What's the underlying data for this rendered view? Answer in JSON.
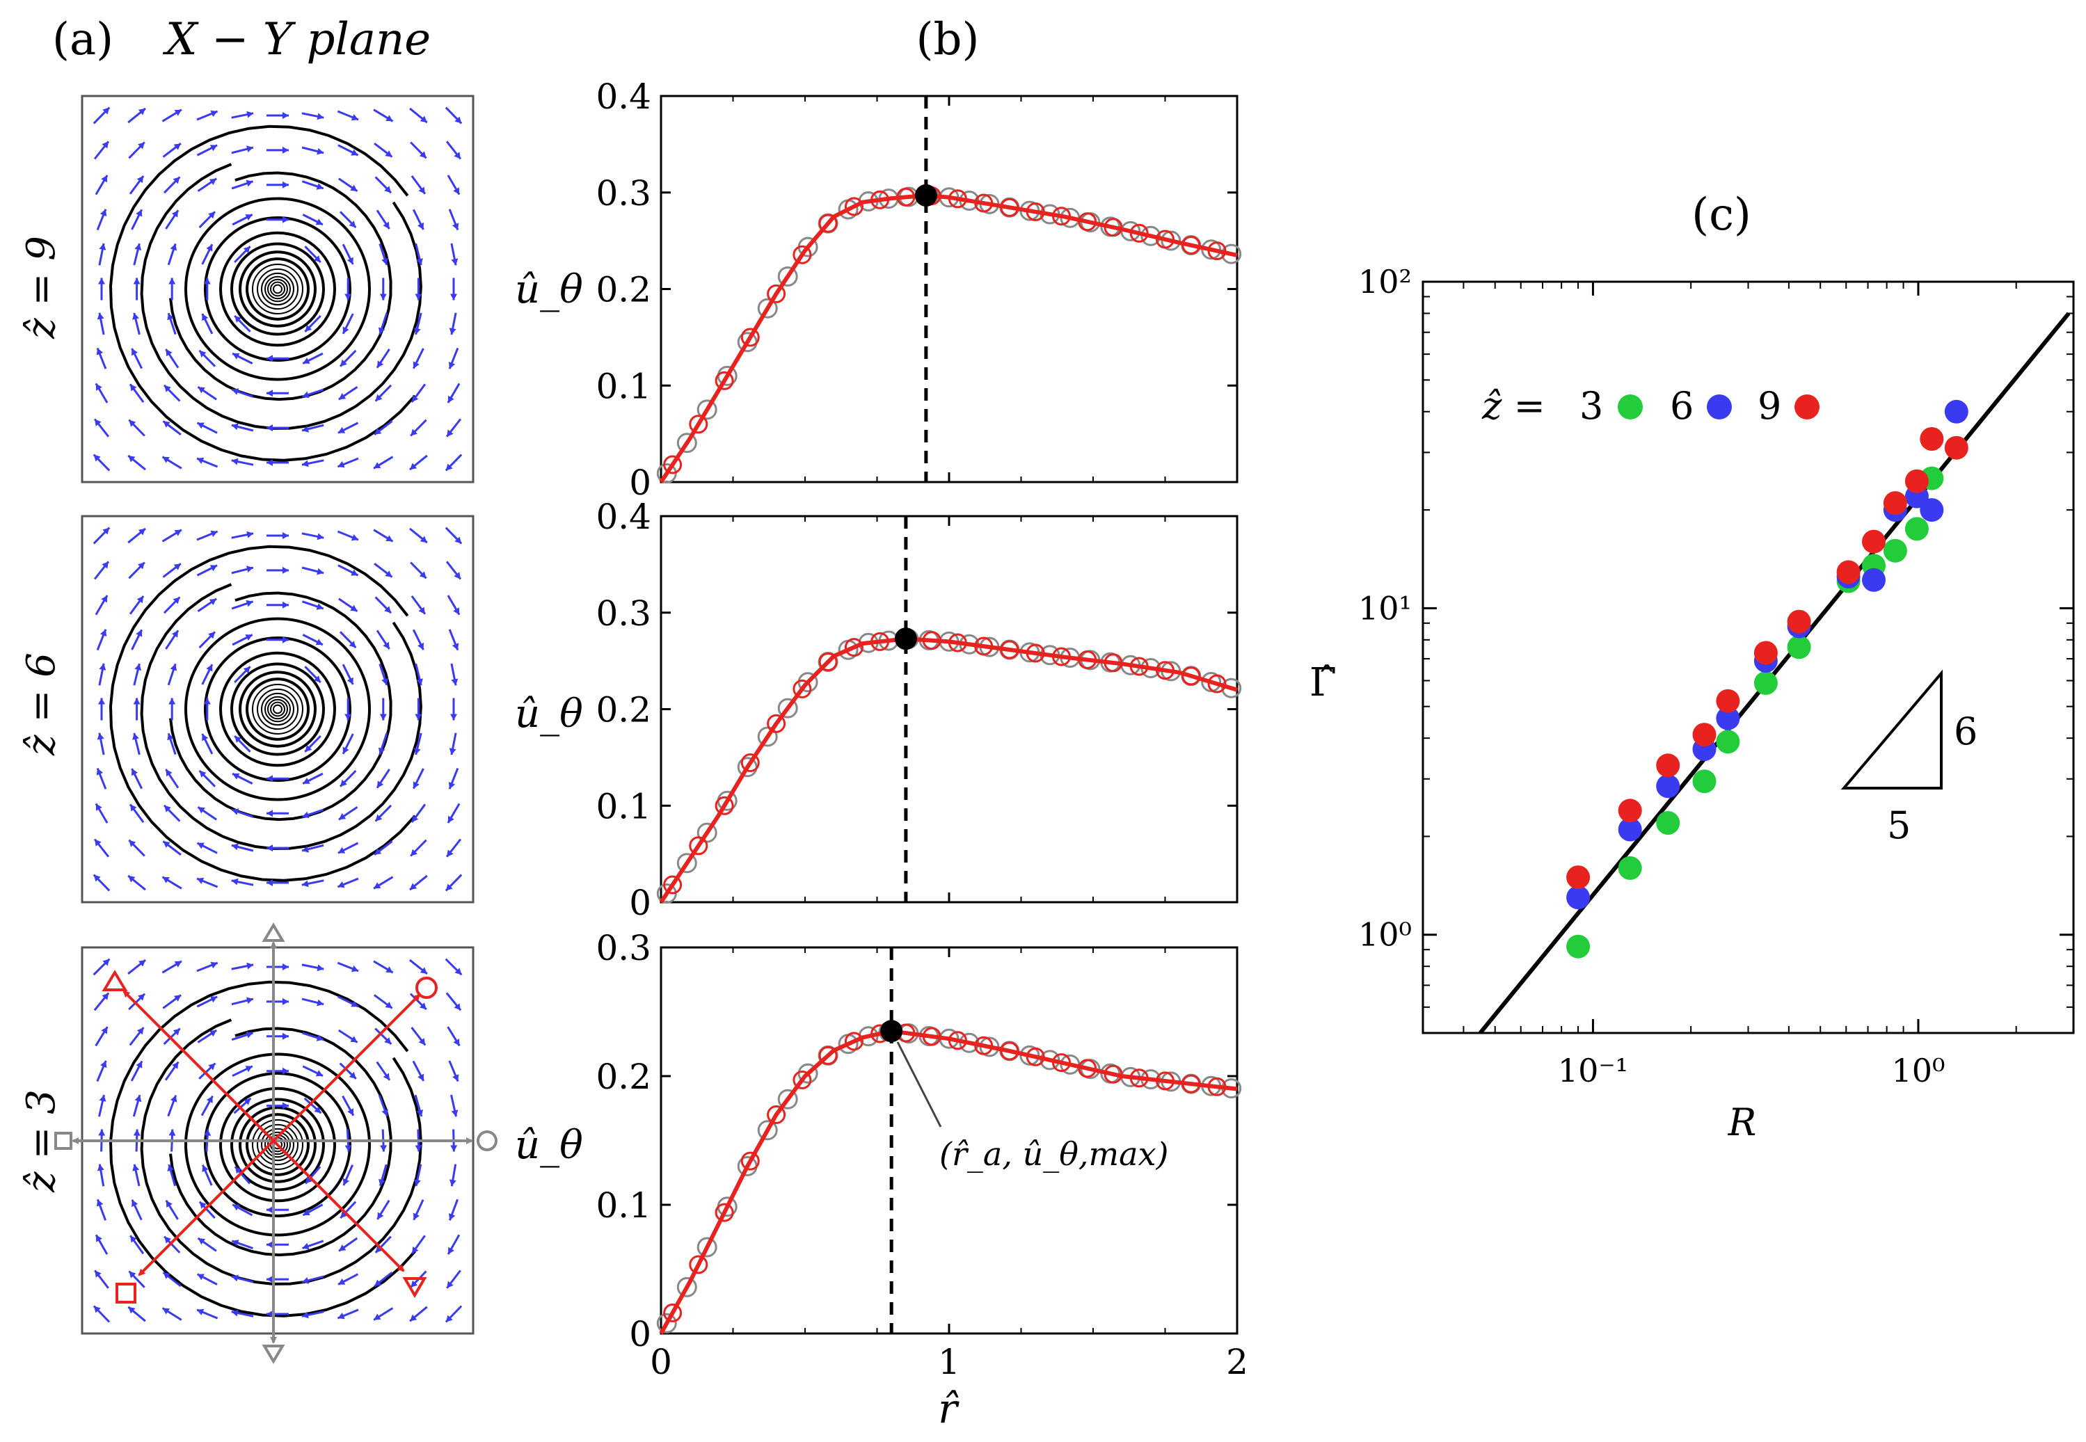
{
  "panel_a": {
    "letter": "(a)",
    "heading": "X − Y plane",
    "rows": [
      {
        "label": "ẑ = 9"
      },
      {
        "label": "ẑ = 6"
      },
      {
        "label": "ẑ = 3"
      }
    ]
  },
  "panel_b": {
    "letter": "(b)",
    "xlabel": "r̂",
    "ylabel": "û_θ",
    "annotation": "(r̂_a, û_θ,max)"
  },
  "panel_c": {
    "letter": "(c)",
    "xlabel": "R",
    "ylabel": "Γ̂",
    "legend_prefix": "ẑ =",
    "slope_rise": "6",
    "slope_run": "5"
  },
  "colors": {
    "arrow": "#3a3af0",
    "red": "#e8231f",
    "blue": "#3a3af0",
    "green": "#22cc3a",
    "gray": "#888888"
  },
  "chart_data": [
    {
      "type": "line",
      "panel": "b-top",
      "x_ticks": [
        "0",
        "1",
        "2"
      ],
      "y_ticks": [
        "0",
        "0.1",
        "0.2",
        "0.3",
        "0.4"
      ],
      "xlim": [
        0,
        2
      ],
      "ylim": [
        0,
        0.4
      ],
      "peak": {
        "x": 0.92,
        "y": 0.297
      },
      "curve": {
        "x": [
          0,
          0.1,
          0.2,
          0.3,
          0.4,
          0.5,
          0.6,
          0.7,
          0.8,
          0.92,
          1.0,
          1.2,
          1.4,
          1.6,
          1.8,
          2.0
        ],
        "y": [
          0,
          0.045,
          0.095,
          0.145,
          0.195,
          0.24,
          0.275,
          0.29,
          0.294,
          0.297,
          0.295,
          0.285,
          0.275,
          0.262,
          0.248,
          0.235
        ]
      }
    },
    {
      "type": "line",
      "panel": "b-middle",
      "x_ticks": [
        "0",
        "1",
        "2"
      ],
      "y_ticks": [
        "0",
        "0.1",
        "0.2",
        "0.3",
        "0.4"
      ],
      "xlim": [
        0,
        2
      ],
      "ylim": [
        0,
        0.4
      ],
      "peak": {
        "x": 0.85,
        "y": 0.273
      },
      "curve": {
        "x": [
          0,
          0.1,
          0.2,
          0.3,
          0.4,
          0.5,
          0.6,
          0.7,
          0.85,
          1.0,
          1.2,
          1.4,
          1.6,
          1.8,
          2.0
        ],
        "y": [
          0,
          0.045,
          0.09,
          0.14,
          0.185,
          0.225,
          0.255,
          0.268,
          0.273,
          0.27,
          0.262,
          0.254,
          0.247,
          0.238,
          0.22
        ]
      }
    },
    {
      "type": "line",
      "panel": "b-bottom",
      "x_ticks": [
        "0",
        "1",
        "2"
      ],
      "y_ticks": [
        "0",
        "0.1",
        "0.2",
        "0.3"
      ],
      "xlim": [
        0,
        2
      ],
      "ylim": [
        0,
        0.3
      ],
      "peak": {
        "x": 0.8,
        "y": 0.235
      },
      "curve": {
        "x": [
          0,
          0.1,
          0.2,
          0.3,
          0.4,
          0.5,
          0.6,
          0.7,
          0.8,
          1.0,
          1.2,
          1.4,
          1.6,
          1.8,
          2.0
        ],
        "y": [
          0,
          0.04,
          0.085,
          0.13,
          0.17,
          0.2,
          0.22,
          0.23,
          0.235,
          0.229,
          0.22,
          0.21,
          0.2,
          0.195,
          0.19
        ]
      }
    },
    {
      "type": "scatter",
      "panel": "c",
      "x_scale": "log",
      "y_scale": "log",
      "xlim": [
        0.03,
        3
      ],
      "ylim": [
        0.5,
        100
      ],
      "x_ticks": [
        "10⁻¹",
        "10⁰"
      ],
      "y_ticks": [
        "10⁰",
        "10¹",
        "10²"
      ],
      "fit_line": {
        "x": [
          0.045,
          2.9
        ],
        "y": [
          0.5,
          80
        ]
      },
      "series": [
        {
          "name": "3",
          "color": "green",
          "x": [
            0.09,
            0.13,
            0.17,
            0.22,
            0.26,
            0.34,
            0.43,
            0.61,
            0.73,
            0.85,
            0.99,
            1.1
          ],
          "y": [
            0.92,
            1.6,
            2.2,
            2.95,
            3.9,
            5.9,
            7.6,
            12.1,
            13.5,
            15.0,
            17.5,
            25.0
          ]
        },
        {
          "name": "6",
          "color": "blue",
          "x": [
            0.09,
            0.13,
            0.17,
            0.22,
            0.26,
            0.34,
            0.43,
            0.61,
            0.73,
            0.85,
            0.99,
            1.1,
            1.31
          ],
          "y": [
            1.3,
            2.1,
            2.85,
            3.7,
            4.6,
            6.9,
            8.8,
            12.5,
            12.2,
            20.0,
            22.0,
            20.0,
            40.0
          ]
        },
        {
          "name": "9",
          "color": "red",
          "x": [
            0.09,
            0.13,
            0.17,
            0.22,
            0.26,
            0.34,
            0.43,
            0.61,
            0.73,
            0.85,
            0.99,
            1.1,
            1.31
          ],
          "y": [
            1.5,
            2.4,
            3.3,
            4.1,
            5.2,
            7.3,
            9.1,
            12.9,
            16.0,
            21.0,
            24.5,
            33.0,
            31.0
          ]
        }
      ]
    }
  ]
}
